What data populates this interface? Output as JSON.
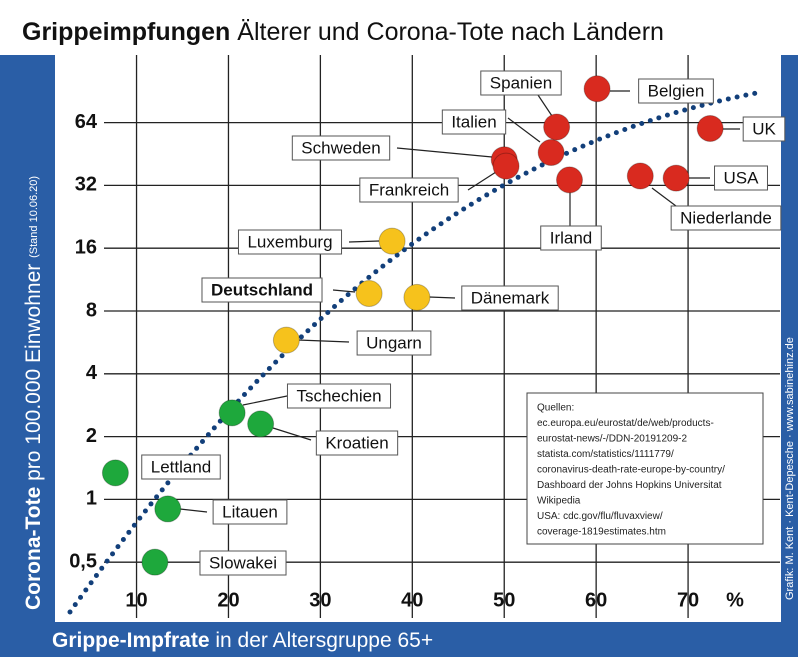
{
  "chart_data": {
    "type": "scatter",
    "title": {
      "bold": "Grippeimpfungen",
      "rest": "Älterer und Corona-Tote nach Ländern"
    },
    "y_label": {
      "bold": "Corona-Tote",
      "rest": "pro 100.000 Einwohner",
      "note": "(Stand 10.06.20)"
    },
    "x_label": {
      "bold": "Grippe-Impfrate",
      "rest": "in der Altersgruppe 65+"
    },
    "x_unit": "%",
    "credit": "Grafik: M. Kent · Kent-Depesche · www.sabinehinz.de",
    "sources": [
      "Quellen:",
      "ec.europa.eu/eurostat/de/web/products-",
      "eurostat-news/-/DDN-20191209-2",
      "statista.com/statistics/1111779/",
      "coronavirus-death-rate-europe-by-country/",
      "Dashboard der Johns Hopkins Universitat",
      "Wikipedia",
      "USA: cdc.gov/flu/fluvaxview/",
      "coverage-1819estimates.htm"
    ],
    "xlim": [
      2,
      80
    ],
    "xticks": [
      10,
      20,
      30,
      40,
      50,
      60,
      70
    ],
    "ylim": [
      0.27,
      135
    ],
    "ylog": true,
    "yticks": [
      {
        "value": 0.5,
        "label": "0,5"
      },
      1,
      2,
      4,
      8,
      16,
      32,
      64
    ],
    "grid": true,
    "points": [
      {
        "label": "Lettland",
        "x": 7.7,
        "y": 1.34,
        "color": "#1ea83c"
      },
      {
        "label": "Litauen",
        "x": 13.4,
        "y": 0.9,
        "color": "#1ea83c"
      },
      {
        "label": "Slowakei",
        "x": 12,
        "y": 0.5,
        "color": "#1ea83c"
      },
      {
        "label": "Tschechien",
        "x": 20.4,
        "y": 2.6,
        "color": "#1ea83c"
      },
      {
        "label": "Kroatien",
        "x": 23.5,
        "y": 2.3,
        "color": "#1ea83c"
      },
      {
        "label": "Ungarn",
        "x": 26.3,
        "y": 5.8,
        "color": "#f6c21c"
      },
      {
        "label": "Deutschland",
        "x": 35.3,
        "y": 9.7,
        "color": "#f6c21c",
        "bold": true
      },
      {
        "label": "Dänemark",
        "x": 40.5,
        "y": 9.3,
        "color": "#f6c21c"
      },
      {
        "label": "Luxemburg",
        "x": 37.8,
        "y": 17.3,
        "color": "#f6c21c"
      },
      {
        "label": "Schweden",
        "x": 50,
        "y": 42.5,
        "color": "#d92a1f"
      },
      {
        "label": "Frankreich",
        "x": 50.2,
        "y": 39.6,
        "color": "#d92a1f"
      },
      {
        "label": "Italien",
        "x": 55.1,
        "y": 46,
        "color": "#d92a1f"
      },
      {
        "label": "Spanien",
        "x": 55.7,
        "y": 61,
        "color": "#d92a1f"
      },
      {
        "label": "Irland",
        "x": 57.1,
        "y": 34,
        "color": "#d92a1f"
      },
      {
        "label": "Belgien",
        "x": 60.1,
        "y": 93,
        "color": "#d92a1f"
      },
      {
        "label": "UK",
        "x": 72.4,
        "y": 60,
        "color": "#d92a1f"
      },
      {
        "label": "USA",
        "x": 68.7,
        "y": 34.7,
        "color": "#d92a1f"
      },
      {
        "label": "Niederlande",
        "x": 64.8,
        "y": 35.5,
        "color": "#d92a1f"
      }
    ]
  }
}
